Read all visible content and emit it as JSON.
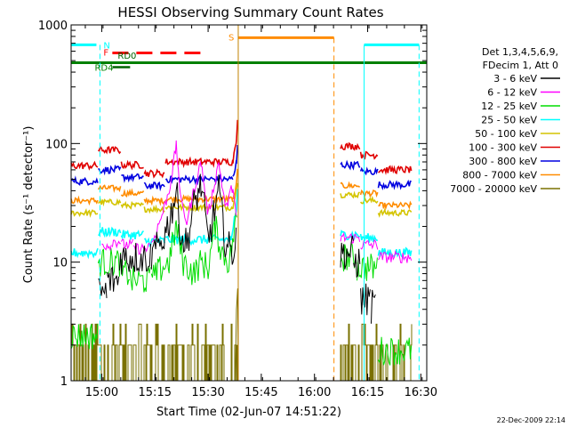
{
  "chart_data": {
    "type": "line",
    "title": "HESSI Observing Summary Count Rates",
    "xlabel": "Start Time (02-Jun-07 14:51:22)",
    "ylabel": "Count Rate (s⁻¹ detector⁻¹)",
    "y_scale": "log",
    "ylim": [
      1,
      1000
    ],
    "xlim": [
      "14:51:22",
      "16:31:40"
    ],
    "x_ticks": [
      "15:00",
      "15:15",
      "15:30",
      "15:45",
      "16:00",
      "16:15",
      "16:30"
    ],
    "y_ticks": [
      "1",
      "10",
      "100",
      "1000"
    ],
    "grid": false,
    "legend_position": "right",
    "legend_header": [
      "Det 1,3,4,5,6,9,",
      "FDecim 1, Att 0"
    ],
    "series": [
      {
        "name": "3 - 6 keV",
        "color": "#000000"
      },
      {
        "name": "6 - 12 keV",
        "color": "#ff00ff"
      },
      {
        "name": "12 - 25 keV",
        "color": "#00dd00"
      },
      {
        "name": "25 - 50 keV",
        "color": "#00ffff"
      },
      {
        "name": "50 - 100 keV",
        "color": "#d4c400"
      },
      {
        "name": "100 - 300 keV",
        "color": "#e00000"
      },
      {
        "name": "300 - 800 keV",
        "color": "#0000e0"
      },
      {
        "name": "800 - 7000 keV",
        "color": "#ff8c00"
      },
      {
        "name": "7000 - 20000 keV",
        "color": "#7a7000"
      }
    ],
    "flag_labels": {
      "N": "N",
      "F": "F",
      "RD0": "RD0",
      "RD4": "RD4",
      "S": "S"
    },
    "timestamp": "22-Dec-2009 22:14"
  }
}
